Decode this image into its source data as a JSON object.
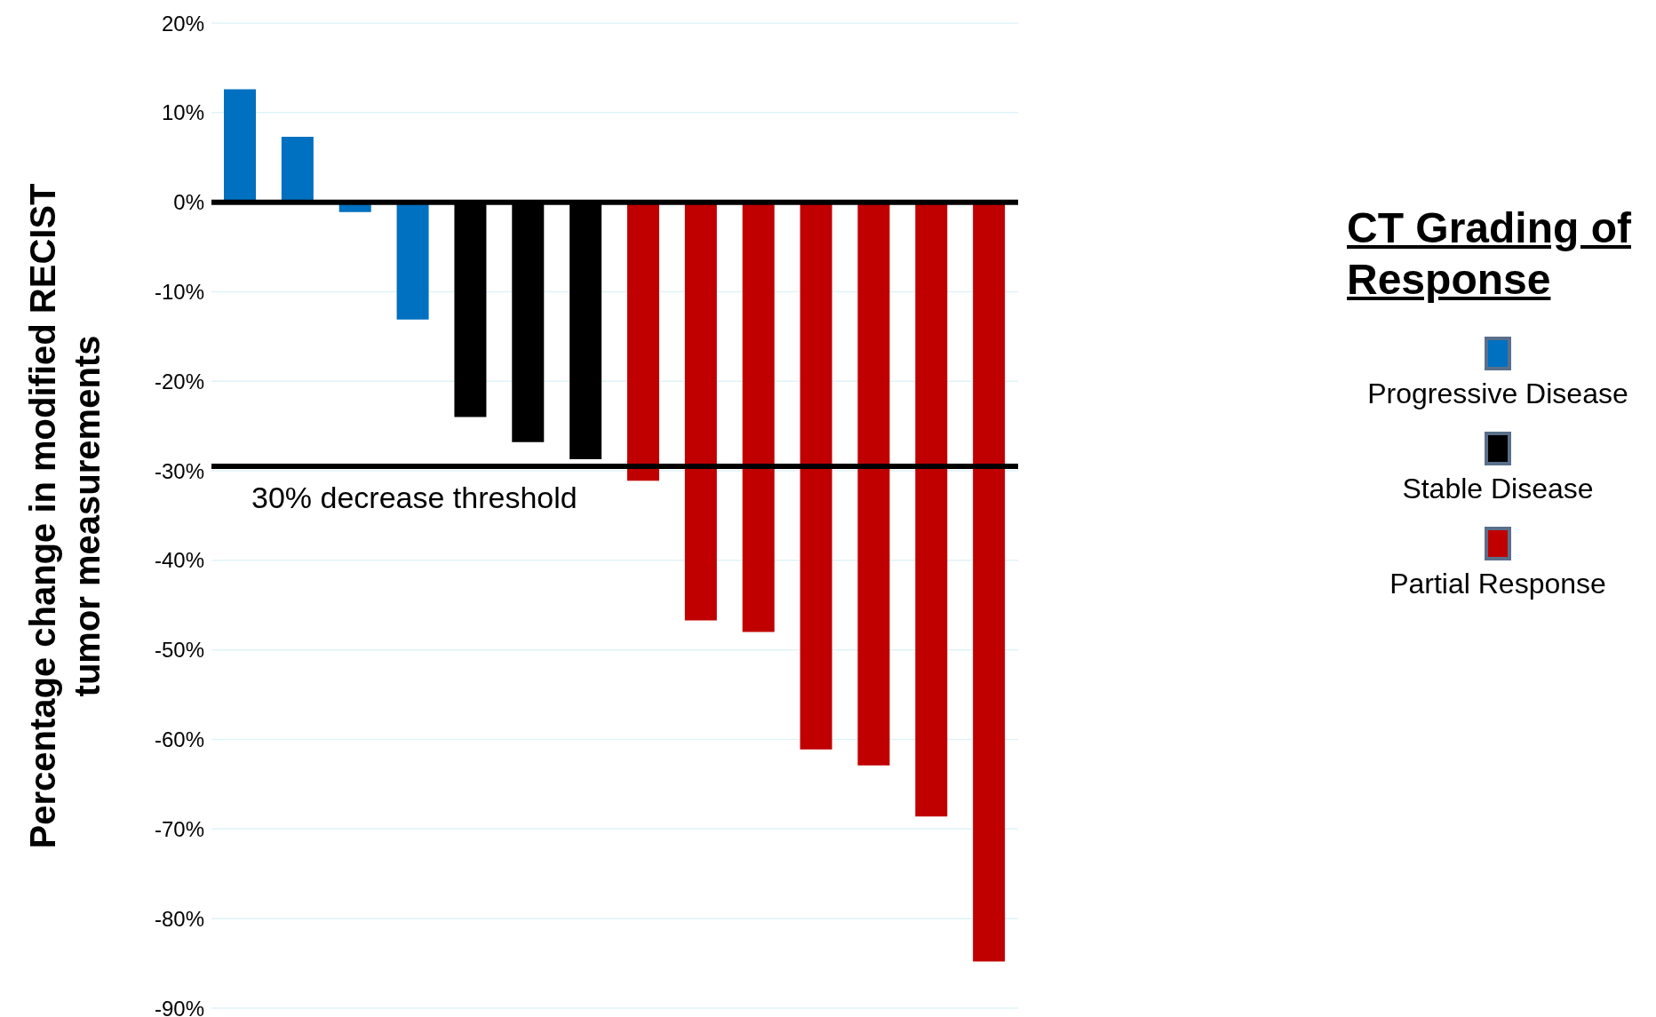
{
  "chart_data": {
    "type": "bar",
    "ylabel": "Percentage change in modified RECIST tumor measurements",
    "legend_title": "CT Grading of Response",
    "categories": [
      null,
      null,
      null,
      null,
      null,
      null,
      null,
      null,
      null,
      null,
      null,
      null,
      null,
      null
    ],
    "stacked": true,
    "series": [
      {
        "name": "Progressive Disease",
        "color": "#0070c0",
        "values": [
          12.6,
          7.3,
          -1.1,
          -13.1,
          null,
          null,
          null,
          null,
          null,
          null,
          null,
          null,
          null,
          null
        ]
      },
      {
        "name": "Stable Disease",
        "color": "#000000",
        "values": [
          null,
          null,
          null,
          null,
          -24.0,
          -26.8,
          -28.7,
          null,
          null,
          null,
          null,
          null,
          null,
          null
        ]
      },
      {
        "name": "Partial Response",
        "color": "#c00000",
        "values": [
          null,
          null,
          null,
          null,
          null,
          null,
          null,
          -31.1,
          -46.7,
          -48.0,
          -61.1,
          -62.9,
          -68.6,
          -84.8
        ]
      }
    ],
    "ylim": [
      -90,
      20
    ],
    "yticks": [
      {
        "value": 20,
        "label": "20%"
      },
      {
        "value": 10,
        "label": "10%"
      },
      {
        "value": 0,
        "label": "0%"
      },
      {
        "value": -10,
        "label": "-10%"
      },
      {
        "value": -20,
        "label": "-20%"
      },
      {
        "value": -30,
        "label": "-30%"
      },
      {
        "value": -40,
        "label": "-40%"
      },
      {
        "value": -50,
        "label": "-50%"
      },
      {
        "value": -60,
        "label": "-60%"
      },
      {
        "value": -70,
        "label": "-70%"
      },
      {
        "value": -80,
        "label": "-80%"
      },
      {
        "value": -90,
        "label": "-90%"
      }
    ],
    "ref_lines": [
      {
        "axis": "y",
        "value": -29.5,
        "label": "30% decrease threshold",
        "color": "#000000"
      }
    ],
    "grid": "y",
    "legend": "right",
    "tick_labels": "y"
  }
}
